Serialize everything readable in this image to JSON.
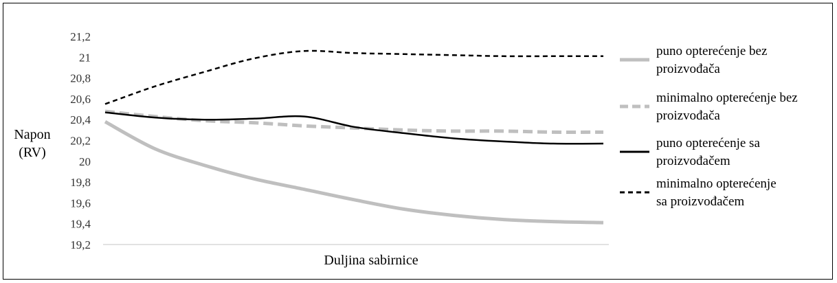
{
  "chart_data": {
    "type": "line",
    "title": "",
    "ylabel": [
      "Napon",
      "(RV)"
    ],
    "xlabel": "Duljina sabirnice",
    "ylim": [
      19.2,
      21.2
    ],
    "ytick_labels": [
      "19,2",
      "19,4",
      "19,6",
      "19,8",
      "20",
      "20,2",
      "20,4",
      "20,6",
      "20,8",
      "21",
      "21,2"
    ],
    "x": [
      0,
      1,
      2,
      3,
      4,
      5,
      6,
      7,
      8,
      9,
      10
    ],
    "grid": false,
    "legend_position": "right",
    "series": [
      {
        "name_lines": [
          "puno opterećenje bez",
          "proizvođača"
        ],
        "color": "#bfbfbf",
        "dash": "solid",
        "values": [
          20.38,
          20.12,
          19.96,
          19.83,
          19.73,
          19.63,
          19.54,
          19.48,
          19.44,
          19.42,
          19.41
        ]
      },
      {
        "name_lines": [
          "minimalno opterećenje bez",
          "proizvođača"
        ],
        "color": "#bfbfbf",
        "dash": "dashed",
        "values": [
          20.48,
          20.43,
          20.39,
          20.37,
          20.34,
          20.32,
          20.3,
          20.29,
          20.29,
          20.28,
          20.28
        ]
      },
      {
        "name_lines": [
          "puno opterećenje sa",
          "proizvođačem"
        ],
        "color": "#000000",
        "dash": "solid",
        "values": [
          20.47,
          20.42,
          20.4,
          20.41,
          20.43,
          20.33,
          20.27,
          20.22,
          20.19,
          20.17,
          20.17
        ]
      },
      {
        "name_lines": [
          "minimalno opterećenje",
          "sa proizvođačem"
        ],
        "color": "#000000",
        "dash": "dashed",
        "values": [
          20.55,
          20.72,
          20.86,
          20.99,
          21.06,
          21.04,
          21.03,
          21.02,
          21.01,
          21.01,
          21.01
        ]
      }
    ]
  }
}
